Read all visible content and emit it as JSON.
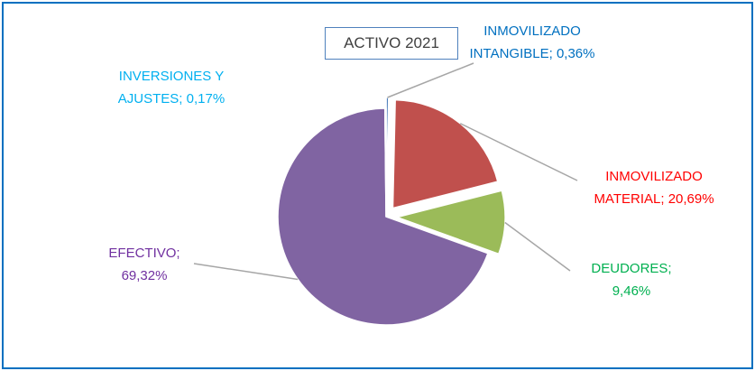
{
  "chart_data": {
    "type": "pie",
    "title": "ACTIVO 2021",
    "categories": [
      "INMOVILIZADO INTANGIBLE;",
      "INMOVILIZADO MATERIAL;",
      "DEUDORES;",
      "EFECTIVO;",
      "INVERSIONES Y AJUSTES;"
    ],
    "values": [
      0.36,
      20.69,
      9.46,
      69.32,
      0.17
    ],
    "value_labels": [
      "0,36%",
      "20,69%",
      "9,46%",
      "69,32%",
      "0,17%"
    ],
    "colors": [
      "#4f81bd",
      "#c0504d",
      "#9bbb59",
      "#8064a2",
      "#4bacc6"
    ],
    "label_colors": [
      "#0070c0",
      "#ff0000",
      "#00b050",
      "#7030a0",
      "#00b0f0"
    ]
  }
}
